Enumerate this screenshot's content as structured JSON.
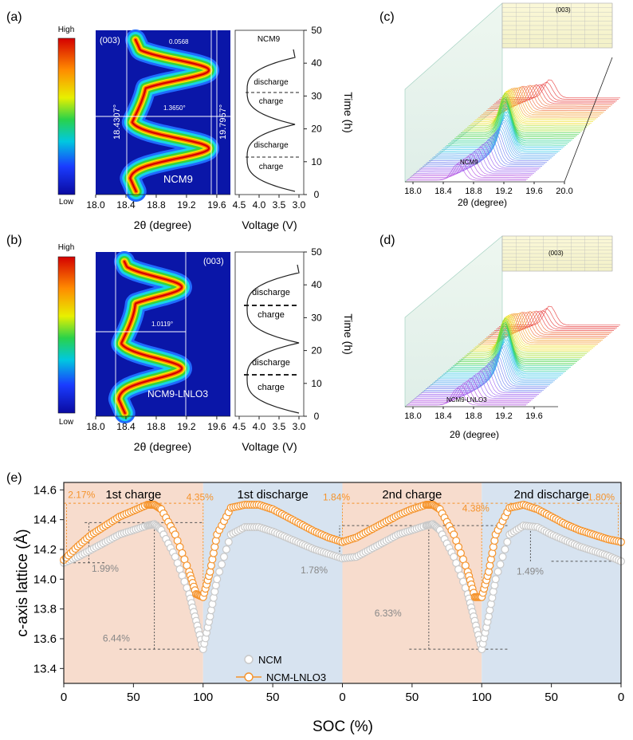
{
  "panels": {
    "a": {
      "label": "(a)",
      "peak": "(003)",
      "sample": "NCM9",
      "left_pos": "18.4307°",
      "right_pos": "19.7957°",
      "shift": "1.3650°",
      "top_width": "0.0568",
      "voltage_sample": "NCM9",
      "segments": [
        "discharge",
        "charge",
        "discharge",
        "charge"
      ]
    },
    "b": {
      "label": "(b)",
      "peak": "(003)",
      "sample": "NCM9-LNLO3",
      "shift": "1.0119°",
      "segments": [
        "discharge",
        "charge",
        "discharge",
        "charge"
      ]
    },
    "c": {
      "label": "(c)",
      "peak": "(003)",
      "sample": "NCM9"
    },
    "d": {
      "label": "(d)",
      "peak": "(003)",
      "sample": "NCM9-LNLO3"
    },
    "e": {
      "label": "(e)"
    }
  },
  "colorbar": {
    "high": "High",
    "low": "Low"
  },
  "axes": {
    "two_theta": {
      "label": "2θ (degree)",
      "ticks": [
        "18.0",
        "18.4",
        "18.8",
        "19.2",
        "19.6"
      ],
      "ticks_3d_c": [
        "18.0",
        "18.4",
        "18.8",
        "19.2",
        "19.6",
        "20.0"
      ],
      "ticks_3d_d": [
        "18.0",
        "18.4",
        "18.8",
        "19.2",
        "19.6"
      ]
    },
    "voltage": {
      "label": "Voltage (V)",
      "ticks": [
        "4.5",
        "4.0",
        "3.5",
        "3.0"
      ]
    },
    "time": {
      "label": "Time (h)",
      "ticks": [
        "0",
        "10",
        "20",
        "30",
        "40",
        "50"
      ]
    }
  },
  "chart_data": {
    "type": "scatter",
    "ylabel": "c-axis lattice (Å)",
    "xlabel": "SOC (%)",
    "x_ticks": [
      "0",
      "50",
      "100",
      "50",
      "0",
      "50",
      "100",
      "50",
      "0"
    ],
    "y_ticks": [
      "13.4",
      "13.6",
      "13.8",
      "14.0",
      "14.2",
      "14.4",
      "14.6"
    ],
    "ylim": [
      13.3,
      14.65
    ],
    "regions": [
      "1st charge",
      "1st discharge",
      "2nd charge",
      "2nd discharge"
    ],
    "region_colors": [
      "#f7dccd",
      "#d7e3f0"
    ],
    "legend": [
      "NCM",
      "NCM-LNLO3"
    ],
    "legend_placement": "bottom-left",
    "series": [
      {
        "name": "NCM",
        "color": "#c8c8c8",
        "x": [
          0,
          10,
          20,
          30,
          40,
          50,
          60,
          65,
          70,
          80,
          90,
          95,
          100,
          105,
          110,
          120,
          130,
          140,
          150,
          160,
          170,
          180,
          190,
          200,
          210,
          220,
          230,
          240,
          250,
          260,
          265,
          270,
          280,
          290,
          295,
          300,
          305,
          310,
          320,
          330,
          340,
          350,
          360,
          370,
          380,
          390,
          400
        ],
        "values": [
          14.11,
          14.15,
          14.2,
          14.25,
          14.3,
          14.33,
          14.36,
          14.37,
          14.33,
          14.15,
          13.9,
          13.72,
          13.53,
          13.75,
          14.0,
          14.3,
          14.35,
          14.35,
          14.32,
          14.28,
          14.24,
          14.2,
          14.17,
          14.14,
          14.15,
          14.2,
          14.25,
          14.3,
          14.33,
          14.36,
          14.37,
          14.33,
          14.15,
          13.9,
          13.72,
          13.53,
          13.75,
          14.0,
          14.3,
          14.36,
          14.35,
          14.3,
          14.26,
          14.22,
          14.19,
          14.16,
          14.12
        ]
      },
      {
        "name": "NCM-LNLO3",
        "color": "#f5932b",
        "x": [
          0,
          10,
          20,
          30,
          40,
          50,
          60,
          65,
          70,
          80,
          90,
          95,
          100,
          105,
          110,
          120,
          130,
          140,
          150,
          160,
          170,
          180,
          190,
          200,
          210,
          220,
          230,
          240,
          250,
          260,
          265,
          270,
          280,
          290,
          295,
          300,
          305,
          310,
          320,
          330,
          340,
          350,
          360,
          370,
          380,
          390,
          400
        ],
        "values": [
          14.13,
          14.22,
          14.3,
          14.36,
          14.42,
          14.46,
          14.5,
          14.5,
          14.47,
          14.3,
          14.05,
          13.9,
          13.88,
          14.05,
          14.3,
          14.48,
          14.5,
          14.5,
          14.47,
          14.42,
          14.37,
          14.32,
          14.28,
          14.25,
          14.28,
          14.33,
          14.38,
          14.43,
          14.47,
          14.5,
          14.5,
          14.47,
          14.3,
          14.05,
          13.88,
          13.88,
          14.05,
          14.3,
          14.48,
          14.5,
          14.47,
          14.42,
          14.37,
          14.33,
          14.3,
          14.27,
          14.25
        ]
      }
    ],
    "annotations": {
      "orange": [
        "2.17%",
        "4.35%",
        "1.84%",
        "4.38%",
        "1.80%"
      ],
      "gray": [
        "1.99%",
        "6.44%",
        "1.78%",
        "6.33%",
        "1.49%"
      ]
    }
  }
}
